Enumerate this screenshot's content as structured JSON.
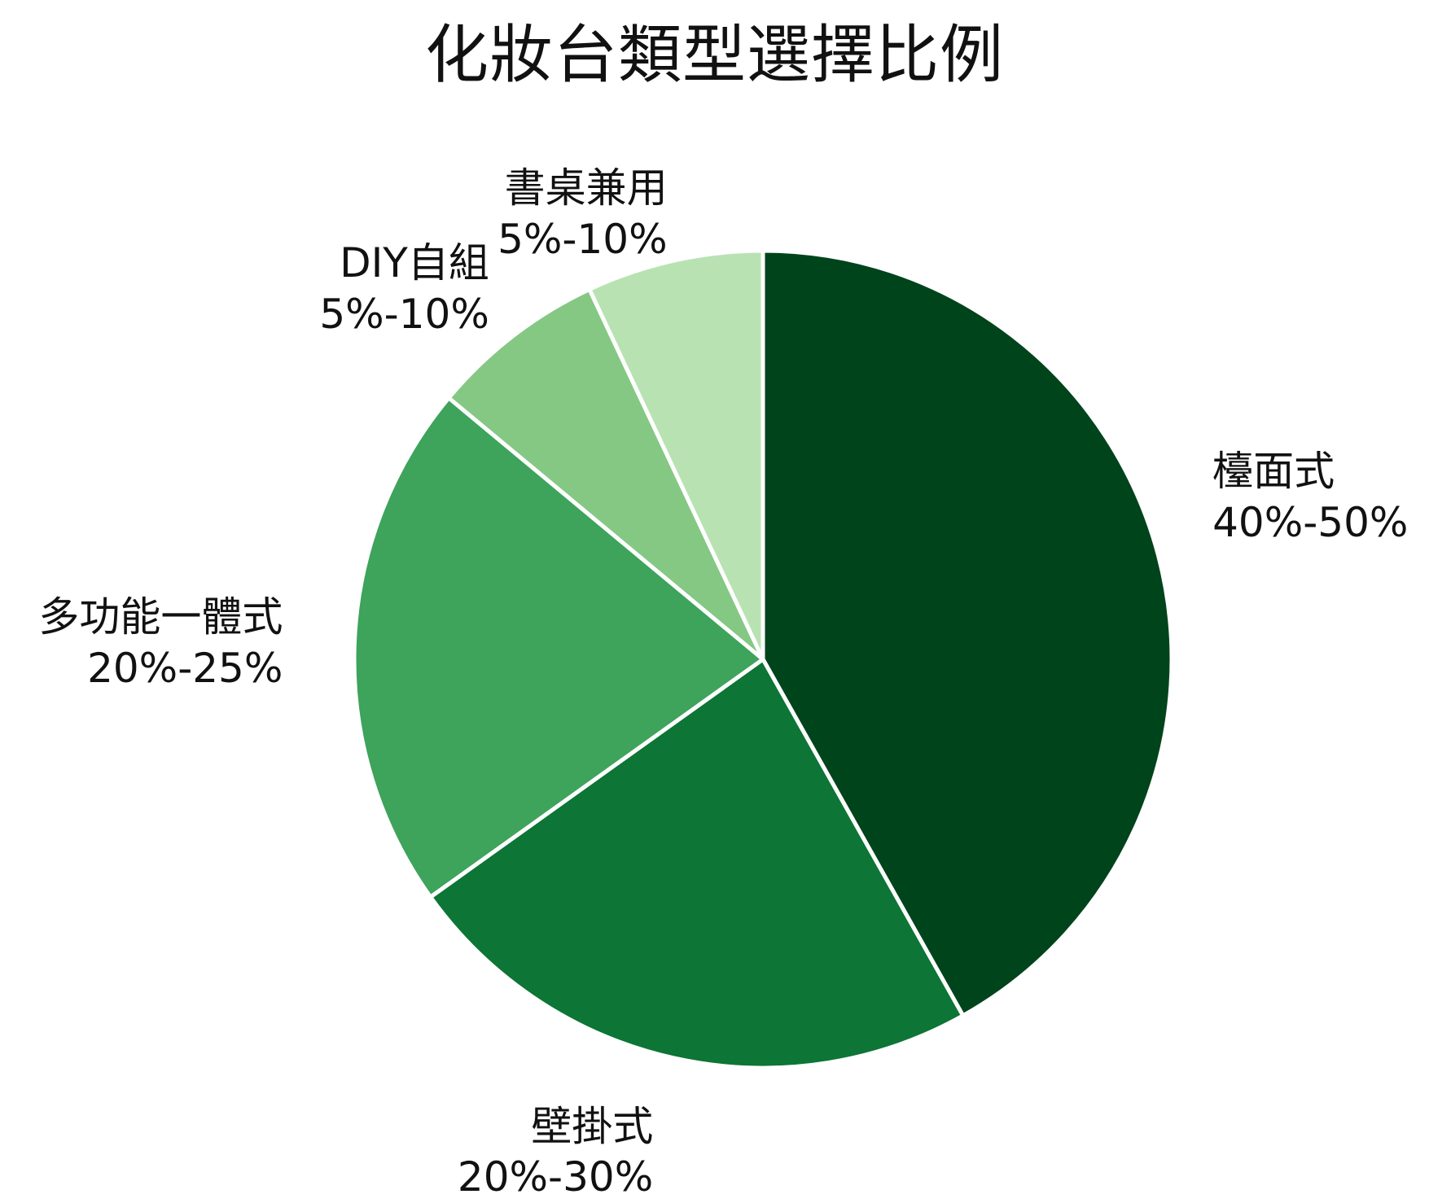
{
  "chart_data": {
    "type": "pie",
    "title": "化妝台類型選擇比例",
    "start_angle": "top",
    "direction": "clockwise",
    "slice_border_color": "#ffffff",
    "slices": [
      {
        "label": "檯面式",
        "value_text": "40%-50%",
        "value": 45,
        "color": "#00441b"
      },
      {
        "label": "壁掛式",
        "value_text": "20%-30%",
        "value": 25,
        "color": "#0d7535"
      },
      {
        "label": "多功能一體式",
        "value_text": "20%-25%",
        "value": 22.5,
        "color": "#3ea35b"
      },
      {
        "label": "DIY自組",
        "value_text": "5%-10%",
        "value": 7.5,
        "color": "#84c884"
      },
      {
        "label": "書桌兼用",
        "value_text": "5%-10%",
        "value": 7.5,
        "color": "#b8e2b2"
      }
    ]
  }
}
